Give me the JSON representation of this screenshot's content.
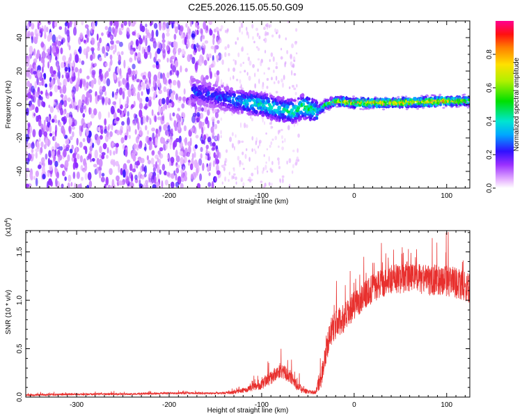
{
  "title": "C2E5.2026.115.05.50.G09",
  "chart_data": [
    {
      "type": "heatmap",
      "xlabel": "Height of straight line (km)",
      "ylabel": "Frequency (Hz)",
      "xlim": [
        -355,
        125
      ],
      "ylim": [
        -50,
        50
      ],
      "xticks": [
        -300,
        -200,
        -100,
        0,
        100
      ],
      "xtick_labels": [
        "-300",
        "-200",
        "-100",
        "0",
        "100"
      ],
      "yticks": [
        -40,
        -20,
        0,
        20,
        40
      ],
      "ytick_labels": [
        "-40",
        "-20",
        "0",
        "20",
        "40"
      ],
      "colorbar": {
        "label": "Normalized spectral amplitude",
        "range": [
          0,
          1
        ],
        "ticks": [
          0,
          0.2,
          0.4,
          0.6,
          0.8
        ],
        "tick_labels": [
          "0.0",
          "0.2",
          "0.4",
          "0.6",
          "0.8"
        ],
        "colormap": "rainbow"
      },
      "features": [
        {
          "name": "broadband noise",
          "x_range": [
            -355,
            -145
          ],
          "y_range": [
            -50,
            50
          ],
          "amplitude": 0.1
        },
        {
          "name": "sparse noise",
          "x_range": [
            -145,
            -60
          ],
          "y_range": [
            -50,
            50
          ],
          "amplitude": 0.04
        },
        {
          "name": "chirping track",
          "x": [
            -175,
            -150,
            -125,
            -100,
            -80,
            -65,
            -55,
            -45,
            -40,
            -30,
            -20,
            0,
            50,
            100,
            125
          ],
          "freq": [
            8,
            5,
            2,
            0,
            -3,
            -4,
            -1,
            -3,
            -4,
            0,
            2,
            1,
            1,
            2,
            2
          ],
          "amplitude": [
            0.3,
            0.3,
            0.4,
            0.5,
            0.5,
            0.55,
            0.6,
            0.55,
            0.5,
            0.6,
            0.75,
            0.85,
            0.9,
            0.9,
            0.75
          ]
        }
      ]
    },
    {
      "type": "line",
      "xlabel": "Height of straight line (km)",
      "ylabel": "SNR (10 * v/v)",
      "yunit_label": "(x10",
      "yunit_exponent": "4",
      "yunit_close": ")",
      "xlim": [
        -355,
        125
      ],
      "ylim": [
        0,
        1.72
      ],
      "xticks": [
        -300,
        -200,
        -100,
        0,
        100
      ],
      "xtick_labels": [
        "-300",
        "-200",
        "-100",
        "0",
        "100"
      ],
      "yticks": [
        0,
        0.5,
        1.0,
        1.5
      ],
      "ytick_labels": [
        "0.0",
        "0.5",
        "1.0",
        "1.5"
      ],
      "color": "#e8302e",
      "series": [
        {
          "name": "SNR",
          "x": [
            -355,
            -300,
            -250,
            -200,
            -160,
            -145,
            -130,
            -115,
            -100,
            -90,
            -80,
            -70,
            -60,
            -50,
            -42,
            -35,
            -30,
            -25,
            -20,
            -15,
            -10,
            -5,
            0,
            10,
            20,
            30,
            40,
            50,
            60,
            70,
            80,
            90,
            100,
            110,
            125
          ],
          "y": [
            0.02,
            0.03,
            0.03,
            0.04,
            0.04,
            0.04,
            0.05,
            0.08,
            0.13,
            0.2,
            0.28,
            0.22,
            0.1,
            0.05,
            0.05,
            0.22,
            0.5,
            0.68,
            0.75,
            0.78,
            0.82,
            0.88,
            0.95,
            1.05,
            1.12,
            1.18,
            1.22,
            1.22,
            1.25,
            1.22,
            1.2,
            1.22,
            1.2,
            1.18,
            1.12
          ],
          "spread": [
            0.01,
            0.01,
            0.01,
            0.01,
            0.01,
            0.01,
            0.02,
            0.03,
            0.05,
            0.07,
            0.08,
            0.07,
            0.05,
            0.02,
            0.02,
            0.12,
            0.15,
            0.15,
            0.15,
            0.15,
            0.15,
            0.15,
            0.15,
            0.15,
            0.15,
            0.15,
            0.16,
            0.16,
            0.16,
            0.16,
            0.16,
            0.16,
            0.16,
            0.16,
            0.15
          ]
        }
      ]
    }
  ]
}
